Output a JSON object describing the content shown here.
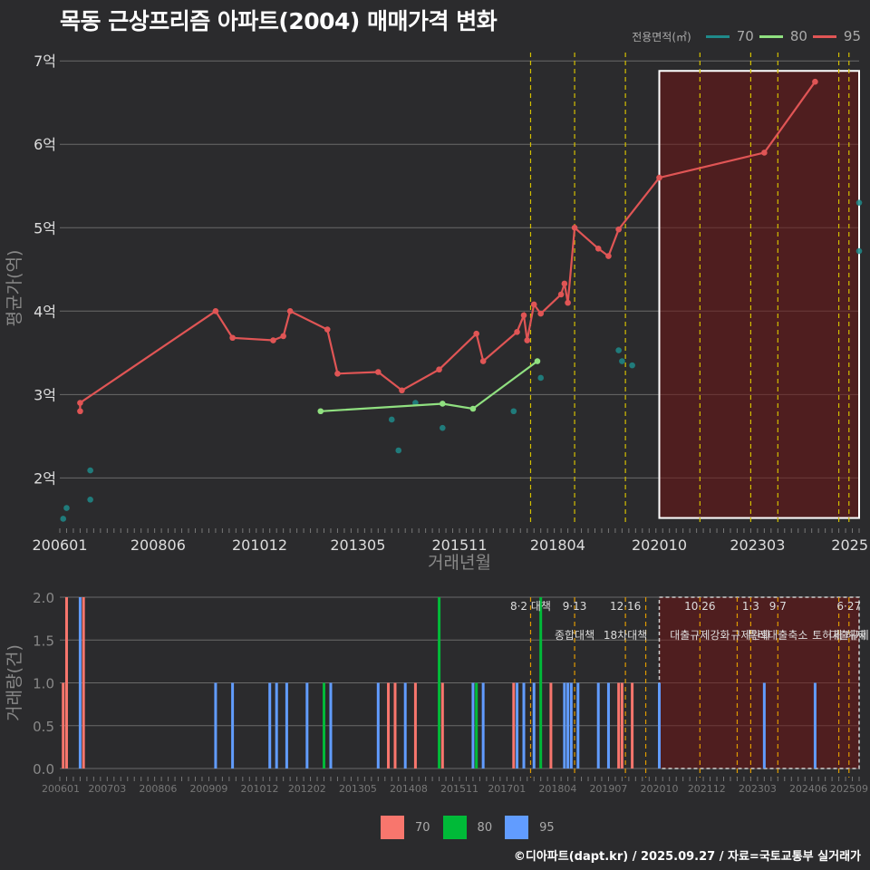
{
  "title": "목동 근상프리즘 아파트(2004) 매매가격 변화",
  "legend_top": {
    "title": "전용면적(㎡)",
    "items": [
      {
        "label": "70",
        "color": "#1f8a8a"
      },
      {
        "label": "80",
        "color": "#90e080"
      },
      {
        "label": "95",
        "color": "#e05555"
      }
    ]
  },
  "legend_bottom": {
    "items": [
      {
        "label": "70",
        "color": "#f8766d"
      },
      {
        "label": "80",
        "color": "#00ba38"
      },
      {
        "label": "95",
        "color": "#619cff"
      }
    ]
  },
  "footer": "©디아파트(dapt.kr) / 2025.09.27 / 자료=국토교통부 실거래가",
  "chart_data": [
    {
      "type": "line",
      "xlabel": "거래년월",
      "ylabel": "평균가(억)",
      "ylim": [
        1.45,
        7.1
      ],
      "yticks": [
        2,
        3,
        4,
        5,
        6,
        7
      ],
      "ytick_labels": [
        "2억",
        "3억",
        "4억",
        "5억",
        "6억",
        "7억"
      ],
      "xlim": [
        "2006-01",
        "2025-09"
      ],
      "xticks": [
        "2006-01",
        "2008-06",
        "2010-12",
        "2013-05",
        "2015-11",
        "2018-04",
        "2020-10",
        "2023-03",
        "2025-09"
      ],
      "xtick_labels": [
        "200601",
        "200806",
        "201012",
        "201305",
        "201511",
        "201804",
        "202010",
        "202303",
        "2025"
      ],
      "policy_lines": [
        "2017-08",
        "2018-09",
        "2019-12",
        "2021-10",
        "2023-01",
        "2023-09",
        "2025-03",
        "2025-06"
      ],
      "highlight_range": [
        "2020-10",
        "2025-09"
      ],
      "series": [
        {
          "name": "70",
          "style": "points",
          "color": "#1f8a8a",
          "points": [
            [
              "2006-02",
              1.51
            ],
            [
              "2006-03",
              1.64
            ],
            [
              "2006-10",
              1.74
            ],
            [
              "2006-10",
              2.09
            ],
            [
              "2014-03",
              2.7
            ],
            [
              "2014-05",
              2.33
            ],
            [
              "2014-10",
              2.9
            ],
            [
              "2015-06",
              2.6
            ],
            [
              "2017-03",
              2.8
            ],
            [
              "2017-11",
              3.2
            ],
            [
              "2019-10",
              3.53
            ],
            [
              "2019-11",
              3.4
            ],
            [
              "2020-02",
              3.35
            ],
            [
              "2025-09",
              5.3
            ],
            [
              "2025-09",
              4.72
            ]
          ]
        },
        {
          "name": "80",
          "style": "line",
          "color": "#90e080",
          "points": [
            [
              "2012-06",
              2.8
            ],
            [
              "2015-06",
              2.89
            ],
            [
              "2016-03",
              2.83
            ],
            [
              "2017-10",
              3.4
            ]
          ]
        },
        {
          "name": "95",
          "style": "line",
          "color": "#e05555",
          "points": [
            [
              "2006-07",
              2.8
            ],
            [
              "2006-07",
              2.9
            ],
            [
              "2009-11",
              4.0
            ],
            [
              "2010-04",
              3.68
            ],
            [
              "2011-04",
              3.65
            ],
            [
              "2011-07",
              3.7
            ],
            [
              "2011-09",
              4.0
            ],
            [
              "2012-08",
              3.78
            ],
            [
              "2012-11",
              3.25
            ],
            [
              "2013-11",
              3.27
            ],
            [
              "2014-06",
              3.05
            ],
            [
              "2015-05",
              3.3
            ],
            [
              "2016-04",
              3.73
            ],
            [
              "2016-06",
              3.4
            ],
            [
              "2017-04",
              3.75
            ],
            [
              "2017-06",
              3.95
            ],
            [
              "2017-07",
              3.65
            ],
            [
              "2017-09",
              4.08
            ],
            [
              "2017-11",
              3.97
            ],
            [
              "2018-05",
              4.2
            ],
            [
              "2018-06",
              4.33
            ],
            [
              "2018-07",
              4.1
            ],
            [
              "2018-09",
              5.0
            ],
            [
              "2019-04",
              4.75
            ],
            [
              "2019-07",
              4.66
            ],
            [
              "2019-10",
              4.98
            ],
            [
              "2020-10",
              5.6
            ],
            [
              "2023-05",
              5.9
            ],
            [
              "2024-08",
              6.75
            ]
          ]
        }
      ]
    },
    {
      "type": "bar",
      "ylabel": "거래량(건)",
      "ylim": [
        0,
        2
      ],
      "yticks": [
        0,
        0.5,
        1,
        1.5,
        2
      ],
      "ytick_labels": [
        "0.0",
        "0.5",
        "1.0",
        "1.5",
        "2.0"
      ],
      "xticks": [
        "2006-01",
        "2007-03",
        "2008-06",
        "2009-09",
        "2010-12",
        "2012-02",
        "2013-05",
        "2014-08",
        "2015-11",
        "2017-01",
        "2018-04",
        "2019-07",
        "2020-10",
        "2021-12",
        "2023-03",
        "2024-06",
        "2025-09"
      ],
      "xtick_labels": [
        "200601",
        "200703",
        "200806",
        "200909",
        "201012",
        "201202",
        "201305",
        "201408",
        "201511",
        "201701",
        "201804",
        "201907",
        "202010",
        "202112",
        "202303",
        "202406",
        "202509"
      ],
      "highlight_range": [
        "2020-10",
        "2025-09"
      ],
      "policy_lines": [
        "2017-08",
        "2018-09",
        "2019-12",
        "2020-06",
        "2021-10",
        "2022-09",
        "2023-01",
        "2023-09",
        "2025-03",
        "2025-06"
      ],
      "annotations": [
        {
          "date": "2017-08",
          "line1": "8·2 대책",
          "line2": ""
        },
        {
          "date": "2018-09",
          "line1": "9·13",
          "line2": "종합대책"
        },
        {
          "date": "2019-12",
          "line1": "12·16",
          "line2": "18차대책"
        },
        {
          "date": "2021-10",
          "line1": "10·26",
          "line2": "대출규제강화"
        },
        {
          "date": "2023-01",
          "line1": "1·3",
          "line2": "규제완화"
        },
        {
          "date": "2023-09",
          "line1": "9·7",
          "line2": "특례대출축소"
        },
        {
          "date": "2025-06",
          "line1": "6·27",
          "line2": "대출규제"
        },
        {
          "date": "2025-03",
          "line1": "",
          "line2": "토허제 해제"
        }
      ],
      "bars": [
        {
          "date": "2006-02",
          "series": "70",
          "value": 1
        },
        {
          "date": "2006-03",
          "series": "70",
          "value": 2
        },
        {
          "date": "2006-07",
          "series": "95",
          "value": 2
        },
        {
          "date": "2006-08",
          "series": "70",
          "value": 2
        },
        {
          "date": "2009-11",
          "series": "95",
          "value": 1
        },
        {
          "date": "2010-04",
          "series": "95",
          "value": 1
        },
        {
          "date": "2011-03",
          "series": "95",
          "value": 1
        },
        {
          "date": "2011-05",
          "series": "95",
          "value": 1
        },
        {
          "date": "2011-08",
          "series": "95",
          "value": 1
        },
        {
          "date": "2012-02",
          "series": "95",
          "value": 1
        },
        {
          "date": "2012-07",
          "series": "80",
          "value": 1
        },
        {
          "date": "2012-09",
          "series": "95",
          "value": 1
        },
        {
          "date": "2013-11",
          "series": "95",
          "value": 1
        },
        {
          "date": "2014-02",
          "series": "70",
          "value": 1
        },
        {
          "date": "2014-04",
          "series": "70",
          "value": 1
        },
        {
          "date": "2014-07",
          "series": "95",
          "value": 1
        },
        {
          "date": "2014-10",
          "series": "70",
          "value": 1
        },
        {
          "date": "2015-05",
          "series": "80",
          "value": 2
        },
        {
          "date": "2015-06",
          "series": "70",
          "value": 1
        },
        {
          "date": "2016-03",
          "series": "95",
          "value": 1
        },
        {
          "date": "2016-04",
          "series": "80",
          "value": 1
        },
        {
          "date": "2016-06",
          "series": "95",
          "value": 1
        },
        {
          "date": "2017-03",
          "series": "70",
          "value": 1
        },
        {
          "date": "2017-04",
          "series": "95",
          "value": 1
        },
        {
          "date": "2017-06",
          "series": "95",
          "value": 1
        },
        {
          "date": "2017-09",
          "series": "95",
          "value": 1
        },
        {
          "date": "2017-11",
          "series": "80",
          "value": 2
        },
        {
          "date": "2018-02",
          "series": "70",
          "value": 1
        },
        {
          "date": "2018-06",
          "series": "95",
          "value": 1
        },
        {
          "date": "2018-07",
          "series": "95",
          "value": 1
        },
        {
          "date": "2018-08",
          "series": "95",
          "value": 1
        },
        {
          "date": "2018-10",
          "series": "95",
          "value": 1
        },
        {
          "date": "2019-04",
          "series": "95",
          "value": 1
        },
        {
          "date": "2019-07",
          "series": "95",
          "value": 1
        },
        {
          "date": "2019-10",
          "series": "70",
          "value": 1
        },
        {
          "date": "2019-11",
          "series": "70",
          "value": 1
        },
        {
          "date": "2020-02",
          "series": "70",
          "value": 1
        },
        {
          "date": "2020-10",
          "series": "95",
          "value": 1
        },
        {
          "date": "2023-05",
          "series": "95",
          "value": 1
        },
        {
          "date": "2024-08",
          "series": "95",
          "value": 1
        }
      ]
    }
  ]
}
